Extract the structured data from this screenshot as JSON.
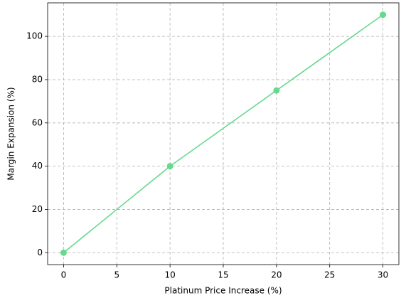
{
  "chart_data": {
    "type": "line",
    "x_label": "Platinum Price Increase (%)",
    "y_label": "Margin Expansion (%)",
    "x": [
      0,
      10,
      20,
      30
    ],
    "series": [
      {
        "name": "Margin Expansion",
        "color": "#66d98e",
        "values": [
          0,
          40,
          75,
          110
        ]
      }
    ],
    "xlim": [
      -1.5,
      31.5
    ],
    "xticks": [
      0,
      5,
      10,
      15,
      20,
      25,
      30
    ],
    "ylim": [
      -5.5,
      115.5
    ],
    "yticks": [
      0,
      20,
      40,
      60,
      80,
      100
    ],
    "grid": true,
    "markers": true
  }
}
